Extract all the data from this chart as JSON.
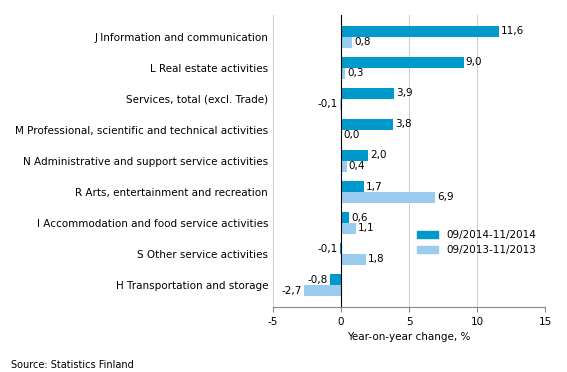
{
  "categories": [
    "J Information and communication",
    "L Real estate activities",
    "Services, total (excl. Trade)",
    "M Professional, scientific and technical activities",
    "N Administrative and support service activities",
    "R Arts, entertainment and recreation",
    "I Accommodation and food service activities",
    "S Other service activities",
    "H Transportation and storage"
  ],
  "series1_label": "09/2014-11/2014",
  "series2_label": "09/2013-11/2013",
  "series1_values": [
    11.6,
    9.0,
    3.9,
    3.8,
    2.0,
    1.7,
    0.6,
    -0.1,
    -0.8
  ],
  "series2_values": [
    0.8,
    0.3,
    -0.1,
    0.0,
    0.4,
    6.9,
    1.1,
    1.8,
    -2.7
  ],
  "series1_color": "#0099CC",
  "series2_color": "#99CCEE",
  "xlim": [
    -5,
    15
  ],
  "xticks": [
    -5,
    0,
    5,
    10,
    15
  ],
  "xlabel": "Year-on-year change, %",
  "source": "Source: Statistics Finland",
  "bar_height": 0.35,
  "background_color": "#ffffff",
  "grid_color": "#cccccc",
  "label_fontsize": 7.5,
  "tick_fontsize": 7.5
}
